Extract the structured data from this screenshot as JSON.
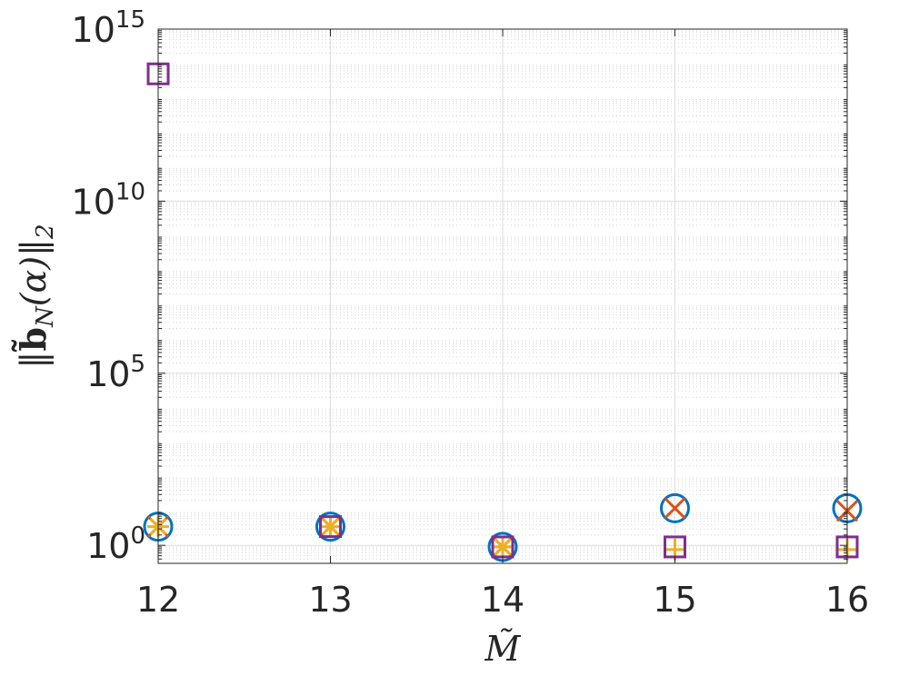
{
  "chart_data": {
    "type": "scatter",
    "title": "",
    "xlabel": "M̃",
    "ylabel": {
      "prefix": "‖",
      "bold": "b̃",
      "sub": "N",
      "mid": "(α)‖",
      "sub2": "2"
    },
    "xscale": "linear",
    "yscale": "log",
    "xlim": [
      12,
      16
    ],
    "ylim": [
      0.3,
      1000000000000000.0
    ],
    "xticks": [
      "12",
      "13",
      "14",
      "15",
      "16"
    ],
    "yticks": [
      {
        "base": "10",
        "exp": "0",
        "value": 1
      },
      {
        "base": "10",
        "exp": "5",
        "value": 100000
      },
      {
        "base": "10",
        "exp": "10",
        "value": 10000000000
      },
      {
        "base": "10",
        "exp": "15",
        "value": 1000000000000000
      }
    ],
    "grid": true,
    "minor_grid_y": true,
    "legend": "none",
    "series": [
      {
        "marker": "circle",
        "color": "#0072BD",
        "x": [
          12,
          13,
          14,
          15,
          16
        ],
        "y": [
          3.5,
          3.5,
          0.9,
          12,
          12
        ]
      },
      {
        "marker": "x",
        "color": "#D95319",
        "x": [
          12,
          13,
          14,
          15,
          16
        ],
        "y": [
          3.5,
          3.5,
          0.9,
          12,
          10
        ]
      },
      {
        "marker": "star",
        "color": "#EDB120",
        "x": [
          12,
          13,
          14
        ],
        "y": [
          3.5,
          3.5,
          0.9
        ]
      },
      {
        "marker": "plus",
        "color": "#EDB120",
        "x": [
          15,
          16
        ],
        "y": [
          0.75,
          0.75
        ]
      },
      {
        "marker": "square",
        "color": "#7E2F8E",
        "x": [
          12,
          13,
          14,
          15,
          16
        ],
        "y": [
          50000000000000,
          3.5,
          0.9,
          0.9,
          0.9
        ]
      }
    ]
  }
}
